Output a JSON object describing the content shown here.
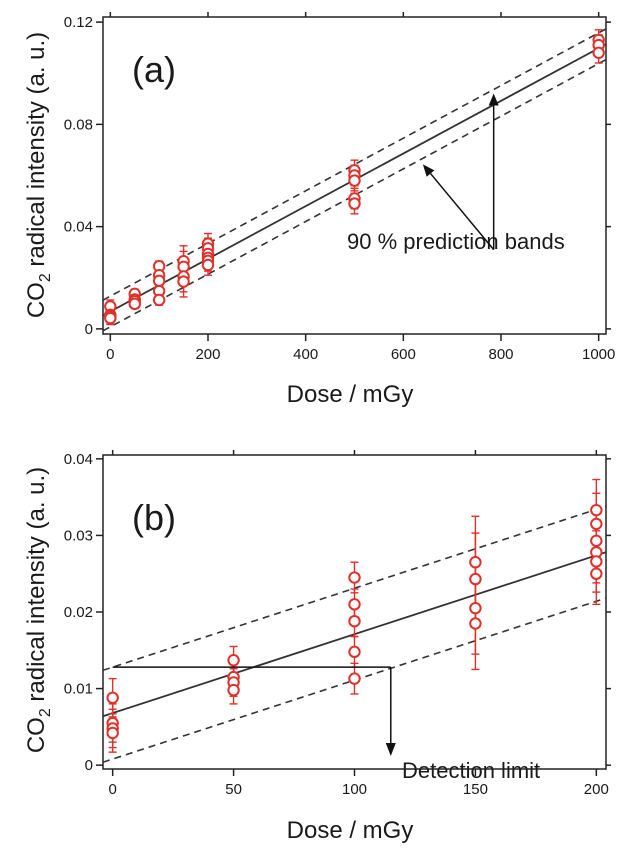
{
  "colors": {
    "marker": "#e0302a",
    "line": "#333333",
    "axis": "#222222"
  },
  "chart_data": [
    {
      "type": "scatter",
      "panel_label": "(a)",
      "xlabel": "Dose / mGy",
      "ylabel_main": "CO",
      "ylabel_sub": "2",
      "ylabel_rest": " radical intensity (a. u.)",
      "xlim": [
        -15,
        1015
      ],
      "ylim": [
        -0.002,
        0.122
      ],
      "xticks": [
        0,
        200,
        400,
        600,
        800,
        1000
      ],
      "xtick_labels": [
        "0",
        "200",
        "400",
        "600",
        "800",
        "1000"
      ],
      "yticks": [
        0,
        0.04,
        0.08,
        0.12
      ],
      "ytick_labels": [
        "0",
        "0.04",
        "0.08",
        "0.12"
      ],
      "fit_line": {
        "intercept": 0.0068,
        "slope": 0.000103
      },
      "prediction_bands": {
        "upper_intercept": 0.0128,
        "lower_intercept": 0.0008,
        "slope": 0.000103,
        "label": "90 % prediction bands"
      },
      "points": [
        {
          "x": 0,
          "y": 0.0088,
          "err": 0.0025
        },
        {
          "x": 0,
          "y": 0.0055,
          "err": 0.0025
        },
        {
          "x": 0,
          "y": 0.0048,
          "err": 0.0025
        },
        {
          "x": 0,
          "y": 0.0042,
          "err": 0.0025
        },
        {
          "x": 50,
          "y": 0.0137,
          "err": 0.0018
        },
        {
          "x": 50,
          "y": 0.0115,
          "err": 0.0018
        },
        {
          "x": 50,
          "y": 0.0108,
          "err": 0.0018
        },
        {
          "x": 50,
          "y": 0.0098,
          "err": 0.0018
        },
        {
          "x": 100,
          "y": 0.0245,
          "err": 0.002
        },
        {
          "x": 100,
          "y": 0.021,
          "err": 0.002
        },
        {
          "x": 100,
          "y": 0.0188,
          "err": 0.002
        },
        {
          "x": 100,
          "y": 0.0148,
          "err": 0.002
        },
        {
          "x": 100,
          "y": 0.0113,
          "err": 0.002
        },
        {
          "x": 150,
          "y": 0.0265,
          "err": 0.006
        },
        {
          "x": 150,
          "y": 0.0243,
          "err": 0.006
        },
        {
          "x": 150,
          "y": 0.0205,
          "err": 0.006
        },
        {
          "x": 150,
          "y": 0.0185,
          "err": 0.006
        },
        {
          "x": 200,
          "y": 0.0333,
          "err": 0.004
        },
        {
          "x": 200,
          "y": 0.0315,
          "err": 0.004
        },
        {
          "x": 200,
          "y": 0.0293,
          "err": 0.004
        },
        {
          "x": 200,
          "y": 0.0278,
          "err": 0.004
        },
        {
          "x": 200,
          "y": 0.0266,
          "err": 0.004
        },
        {
          "x": 200,
          "y": 0.025,
          "err": 0.004
        },
        {
          "x": 500,
          "y": 0.062,
          "err": 0.004
        },
        {
          "x": 500,
          "y": 0.06,
          "err": 0.004
        },
        {
          "x": 500,
          "y": 0.058,
          "err": 0.004
        },
        {
          "x": 500,
          "y": 0.051,
          "err": 0.004
        },
        {
          "x": 500,
          "y": 0.049,
          "err": 0.004
        },
        {
          "x": 1000,
          "y": 0.113,
          "err": 0.004
        },
        {
          "x": 1000,
          "y": 0.111,
          "err": 0.004
        },
        {
          "x": 1000,
          "y": 0.108,
          "err": 0.004
        }
      ]
    },
    {
      "type": "scatter",
      "panel_label": "(b)",
      "xlabel": "Dose / mGy",
      "ylabel_main": "CO",
      "ylabel_sub": "2",
      "ylabel_rest": " radical intensity (a. u.)",
      "xlim": [
        -4,
        204
      ],
      "ylim": [
        -0.0005,
        0.0405
      ],
      "xticks": [
        0,
        50,
        100,
        150,
        200
      ],
      "xtick_labels": [
        "0",
        "50",
        "100",
        "150",
        "200"
      ],
      "yticks": [
        0,
        0.01,
        0.02,
        0.03,
        0.04
      ],
      "ytick_labels": [
        "0",
        "0.01",
        "0.02",
        "0.03",
        "0.04"
      ],
      "fit_line": {
        "intercept": 0.0068,
        "slope": 0.000103
      },
      "prediction_bands": {
        "upper_intercept": 0.0128,
        "lower_intercept": 0.0008,
        "slope": 0.000103
      },
      "detection_limit": {
        "y": 0.0128,
        "x": 115,
        "label": "Detection limit"
      },
      "points": [
        {
          "x": 0,
          "y": 0.0088,
          "err": 0.0025
        },
        {
          "x": 0,
          "y": 0.0055,
          "err": 0.0025
        },
        {
          "x": 0,
          "y": 0.0048,
          "err": 0.0025
        },
        {
          "x": 0,
          "y": 0.0042,
          "err": 0.0025
        },
        {
          "x": 50,
          "y": 0.0137,
          "err": 0.0018
        },
        {
          "x": 50,
          "y": 0.0115,
          "err": 0.0018
        },
        {
          "x": 50,
          "y": 0.0108,
          "err": 0.0018
        },
        {
          "x": 50,
          "y": 0.0098,
          "err": 0.0018
        },
        {
          "x": 100,
          "y": 0.0245,
          "err": 0.002
        },
        {
          "x": 100,
          "y": 0.021,
          "err": 0.002
        },
        {
          "x": 100,
          "y": 0.0188,
          "err": 0.002
        },
        {
          "x": 100,
          "y": 0.0148,
          "err": 0.002
        },
        {
          "x": 100,
          "y": 0.0113,
          "err": 0.002
        },
        {
          "x": 150,
          "y": 0.0265,
          "err": 0.006
        },
        {
          "x": 150,
          "y": 0.0243,
          "err": 0.006
        },
        {
          "x": 150,
          "y": 0.0205,
          "err": 0.006
        },
        {
          "x": 150,
          "y": 0.0185,
          "err": 0.006
        },
        {
          "x": 200,
          "y": 0.0333,
          "err": 0.004
        },
        {
          "x": 200,
          "y": 0.0315,
          "err": 0.004
        },
        {
          "x": 200,
          "y": 0.0293,
          "err": 0.004
        },
        {
          "x": 200,
          "y": 0.0278,
          "err": 0.004
        },
        {
          "x": 200,
          "y": 0.0266,
          "err": 0.004
        },
        {
          "x": 200,
          "y": 0.025,
          "err": 0.004
        }
      ]
    }
  ]
}
